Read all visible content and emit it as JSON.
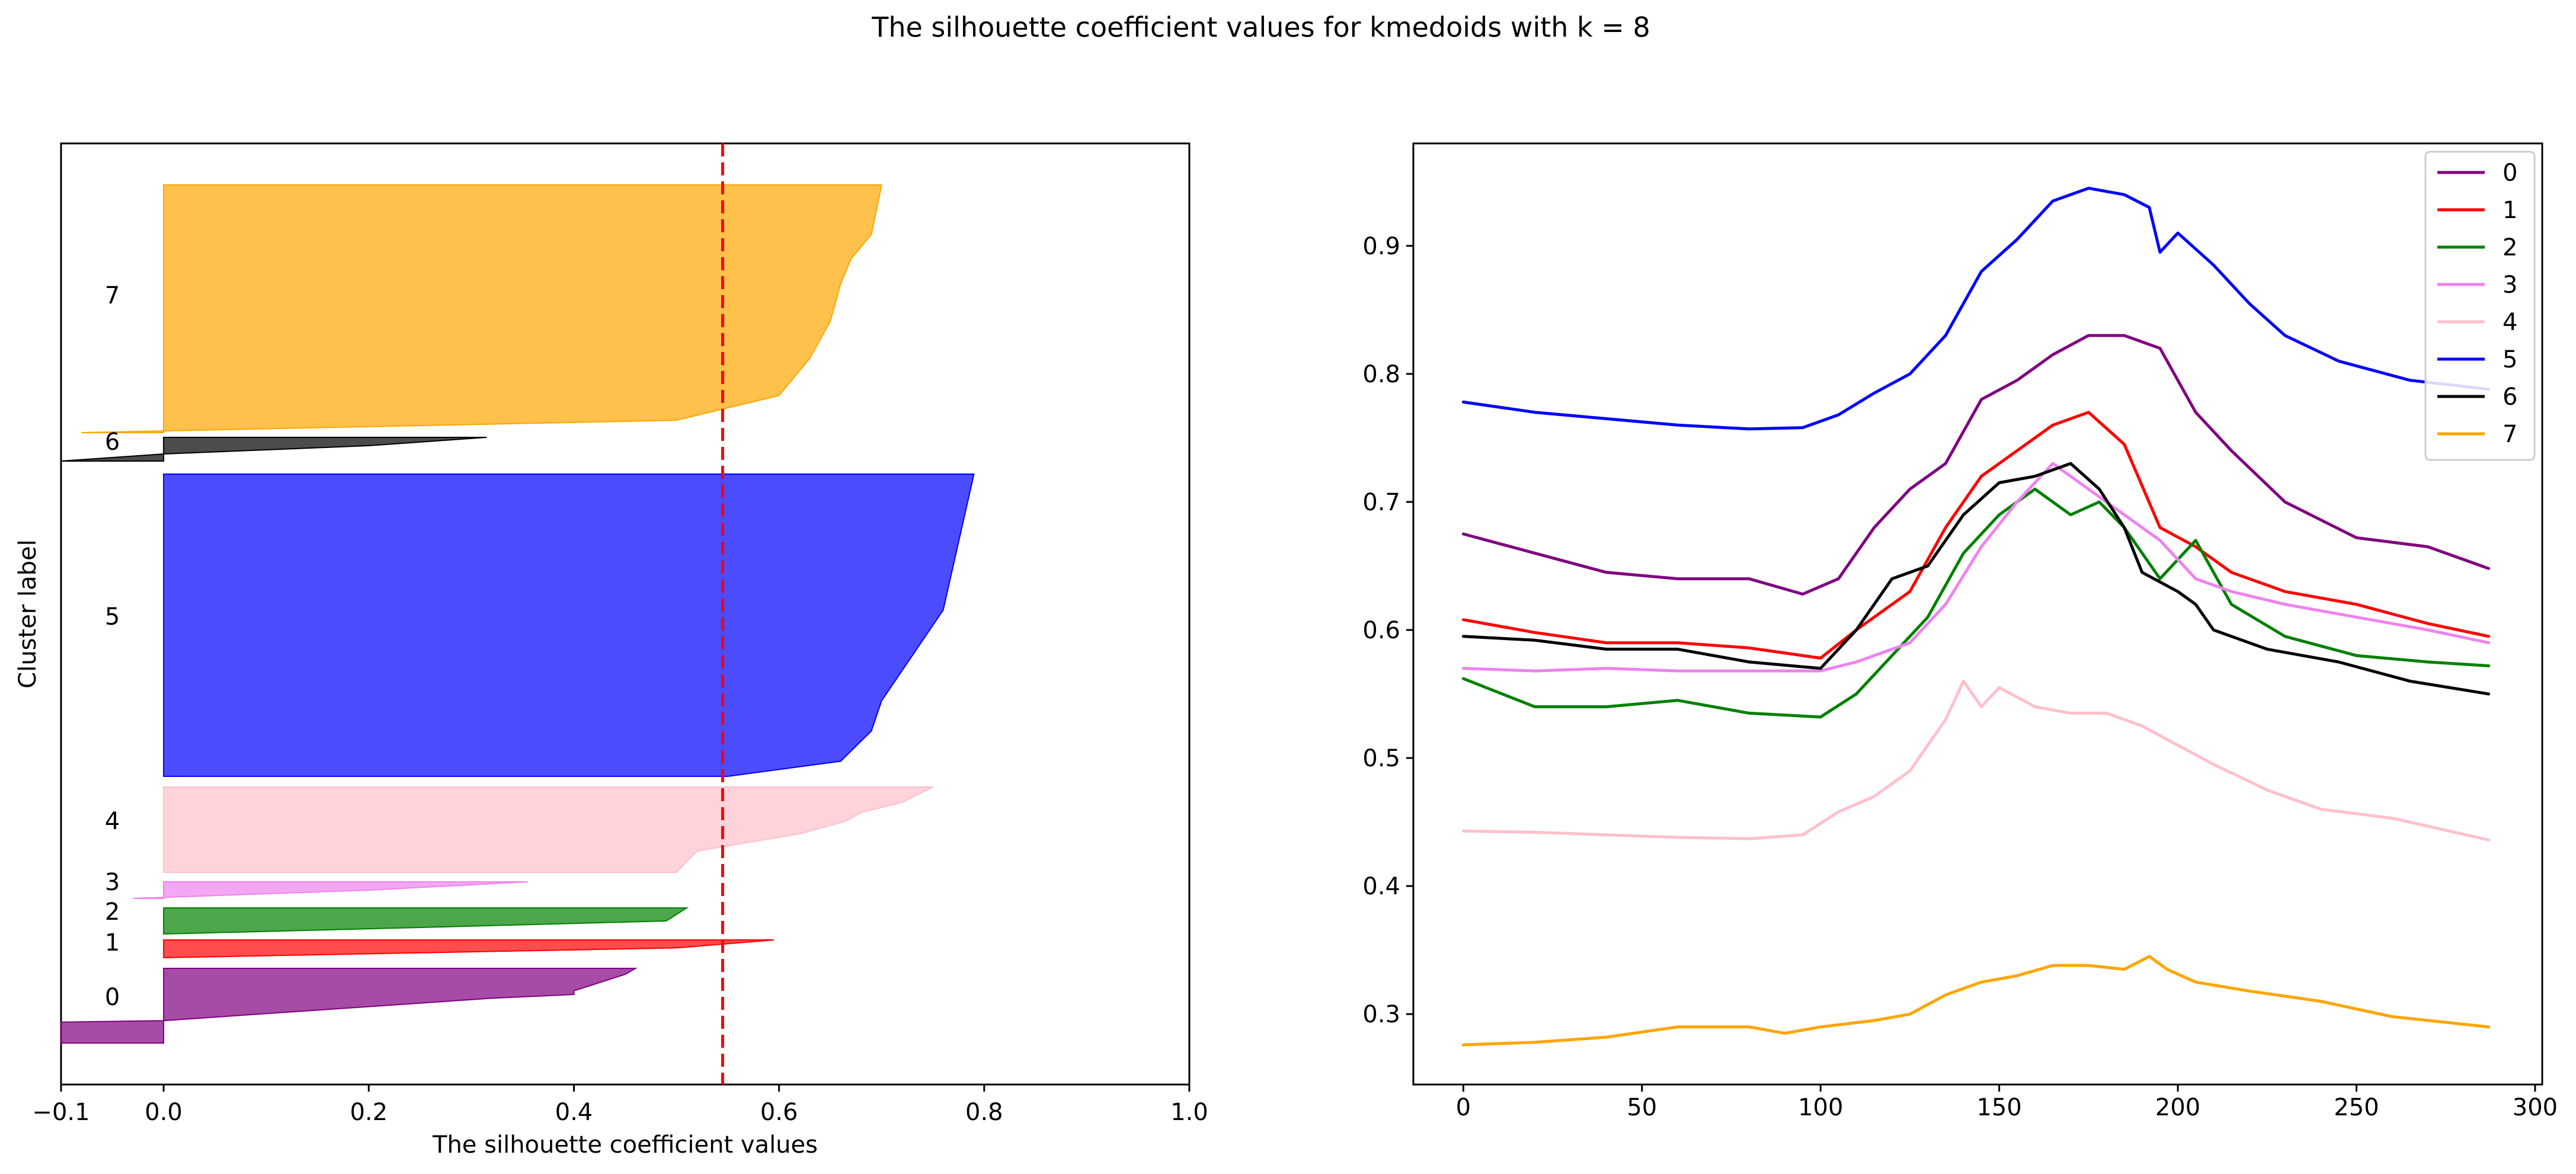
{
  "figure": {
    "suptitle": "The silhouette coefficient values for kmedoids with k = 8"
  },
  "chart_data": [
    {
      "type": "area",
      "title": "",
      "xlabel": "The silhouette coefficient values",
      "ylabel": "Cluster label",
      "xlim": [
        -0.1,
        1.0
      ],
      "xticks": [
        -0.1,
        0.0,
        0.2,
        0.4,
        0.6,
        0.8,
        1.0
      ],
      "xtick_labels": [
        "−0.1",
        "0.0",
        "0.2",
        "0.4",
        "0.6",
        "0.8",
        "1.0"
      ],
      "average_line": {
        "value": 0.545,
        "color": "#ff0000",
        "style": "dashed"
      },
      "clusters": [
        {
          "label": "0",
          "color": "#800080",
          "profile": [
            [
              0.0,
              0.46
            ],
            [
              0.08,
              0.45
            ],
            [
              0.3,
              0.4
            ],
            [
              0.35,
              0.4
            ],
            [
              0.4,
              0.32
            ],
            [
              0.7,
              0.0
            ],
            [
              0.72,
              -0.1
            ],
            [
              1.0,
              -0.1
            ]
          ]
        },
        {
          "label": "1",
          "color": "#ff0000",
          "profile": [
            [
              0.0,
              0.595
            ],
            [
              0.45,
              0.5
            ],
            [
              1.0,
              0.0
            ]
          ]
        },
        {
          "label": "2",
          "color": "#008000",
          "profile": [
            [
              0.0,
              0.51
            ],
            [
              0.5,
              0.49
            ],
            [
              0.7,
              0.3
            ],
            [
              1.0,
              0.0
            ]
          ]
        },
        {
          "label": "3",
          "color": "#ee82ee",
          "profile": [
            [
              0.0,
              0.355
            ],
            [
              0.5,
              0.2
            ],
            [
              1.0,
              -0.03
            ]
          ]
        },
        {
          "label": "4",
          "color": "#ffc0cb",
          "profile": [
            [
              0.0,
              0.75
            ],
            [
              0.18,
              0.72
            ],
            [
              0.3,
              0.68
            ],
            [
              0.4,
              0.665
            ],
            [
              0.55,
              0.62
            ],
            [
              0.75,
              0.52
            ],
            [
              1.0,
              0.5
            ]
          ]
        },
        {
          "label": "5",
          "color": "#0000ff",
          "profile": [
            [
              0.0,
              0.79
            ],
            [
              0.15,
              0.78
            ],
            [
              0.3,
              0.77
            ],
            [
              0.45,
              0.76
            ],
            [
              0.55,
              0.74
            ],
            [
              0.65,
              0.72
            ],
            [
              0.75,
              0.7
            ],
            [
              0.85,
              0.69
            ],
            [
              0.95,
              0.66
            ],
            [
              1.0,
              0.55
            ]
          ]
        },
        {
          "label": "6",
          "color": "#000000",
          "profile": [
            [
              0.0,
              0.315
            ],
            [
              0.35,
              0.2
            ],
            [
              0.7,
              0.0
            ],
            [
              1.0,
              -0.1
            ]
          ]
        },
        {
          "label": "7",
          "color": "#ffa500",
          "profile": [
            [
              0.0,
              0.7
            ],
            [
              0.1,
              0.695
            ],
            [
              0.2,
              0.69
            ],
            [
              0.3,
              0.67
            ],
            [
              0.4,
              0.66
            ],
            [
              0.55,
              0.65
            ],
            [
              0.7,
              0.63
            ],
            [
              0.85,
              0.6
            ],
            [
              0.95,
              0.5
            ],
            [
              1.0,
              -0.08
            ]
          ]
        }
      ]
    },
    {
      "type": "line",
      "title": "",
      "xlabel": "",
      "ylabel": "",
      "xlim": [
        -14,
        302
      ],
      "ylim": [
        0.245,
        0.98
      ],
      "xticks": [
        0,
        50,
        100,
        150,
        200,
        250,
        300
      ],
      "yticks": [
        0.3,
        0.4,
        0.5,
        0.6,
        0.7,
        0.8,
        0.9
      ],
      "legend_position": "top-right",
      "series": [
        {
          "name": "0",
          "color": "#800080",
          "points": [
            [
              0,
              0.675
            ],
            [
              20,
              0.66
            ],
            [
              40,
              0.645
            ],
            [
              60,
              0.64
            ],
            [
              80,
              0.64
            ],
            [
              95,
              0.628
            ],
            [
              105,
              0.64
            ],
            [
              115,
              0.68
            ],
            [
              125,
              0.71
            ],
            [
              135,
              0.73
            ],
            [
              145,
              0.78
            ],
            [
              155,
              0.795
            ],
            [
              165,
              0.815
            ],
            [
              175,
              0.83
            ],
            [
              185,
              0.83
            ],
            [
              195,
              0.82
            ],
            [
              205,
              0.77
            ],
            [
              215,
              0.74
            ],
            [
              230,
              0.7
            ],
            [
              250,
              0.672
            ],
            [
              270,
              0.665
            ],
            [
              287,
              0.648
            ]
          ]
        },
        {
          "name": "1",
          "color": "#ff0000",
          "points": [
            [
              0,
              0.608
            ],
            [
              20,
              0.598
            ],
            [
              40,
              0.59
            ],
            [
              60,
              0.59
            ],
            [
              80,
              0.586
            ],
            [
              100,
              0.578
            ],
            [
              110,
              0.6
            ],
            [
              125,
              0.63
            ],
            [
              135,
              0.68
            ],
            [
              145,
              0.72
            ],
            [
              155,
              0.74
            ],
            [
              165,
              0.76
            ],
            [
              175,
              0.77
            ],
            [
              185,
              0.745
            ],
            [
              195,
              0.68
            ],
            [
              205,
              0.665
            ],
            [
              215,
              0.645
            ],
            [
              230,
              0.63
            ],
            [
              250,
              0.62
            ],
            [
              270,
              0.605
            ],
            [
              287,
              0.595
            ]
          ]
        },
        {
          "name": "2",
          "color": "#008000",
          "points": [
            [
              0,
              0.562
            ],
            [
              20,
              0.54
            ],
            [
              40,
              0.54
            ],
            [
              60,
              0.545
            ],
            [
              80,
              0.535
            ],
            [
              100,
              0.532
            ],
            [
              110,
              0.55
            ],
            [
              120,
              0.58
            ],
            [
              130,
              0.61
            ],
            [
              140,
              0.66
            ],
            [
              150,
              0.69
            ],
            [
              160,
              0.71
            ],
            [
              170,
              0.69
            ],
            [
              178,
              0.7
            ],
            [
              185,
              0.68
            ],
            [
              195,
              0.64
            ],
            [
              205,
              0.67
            ],
            [
              215,
              0.62
            ],
            [
              230,
              0.595
            ],
            [
              250,
              0.58
            ],
            [
              270,
              0.575
            ],
            [
              287,
              0.572
            ]
          ]
        },
        {
          "name": "3",
          "color": "#ee82ee",
          "points": [
            [
              0,
              0.57
            ],
            [
              20,
              0.568
            ],
            [
              40,
              0.57
            ],
            [
              60,
              0.568
            ],
            [
              80,
              0.568
            ],
            [
              100,
              0.568
            ],
            [
              110,
              0.575
            ],
            [
              125,
              0.59
            ],
            [
              135,
              0.62
            ],
            [
              145,
              0.665
            ],
            [
              155,
              0.7
            ],
            [
              165,
              0.73
            ],
            [
              175,
              0.71
            ],
            [
              185,
              0.69
            ],
            [
              195,
              0.67
            ],
            [
              205,
              0.64
            ],
            [
              215,
              0.63
            ],
            [
              230,
              0.62
            ],
            [
              250,
              0.61
            ],
            [
              270,
              0.6
            ],
            [
              287,
              0.59
            ]
          ]
        },
        {
          "name": "4",
          "color": "#ffc0cb",
          "points": [
            [
              0,
              0.443
            ],
            [
              20,
              0.442
            ],
            [
              40,
              0.44
            ],
            [
              60,
              0.438
            ],
            [
              80,
              0.437
            ],
            [
              95,
              0.44
            ],
            [
              105,
              0.458
            ],
            [
              115,
              0.47
            ],
            [
              125,
              0.49
            ],
            [
              135,
              0.53
            ],
            [
              140,
              0.56
            ],
            [
              145,
              0.54
            ],
            [
              150,
              0.555
            ],
            [
              160,
              0.54
            ],
            [
              170,
              0.535
            ],
            [
              180,
              0.535
            ],
            [
              190,
              0.525
            ],
            [
              200,
              0.51
            ],
            [
              210,
              0.495
            ],
            [
              225,
              0.475
            ],
            [
              240,
              0.46
            ],
            [
              260,
              0.453
            ],
            [
              287,
              0.436
            ]
          ]
        },
        {
          "name": "5",
          "color": "#0000ff",
          "points": [
            [
              0,
              0.778
            ],
            [
              20,
              0.77
            ],
            [
              40,
              0.765
            ],
            [
              60,
              0.76
            ],
            [
              80,
              0.757
            ],
            [
              95,
              0.758
            ],
            [
              105,
              0.768
            ],
            [
              115,
              0.785
            ],
            [
              125,
              0.8
            ],
            [
              135,
              0.83
            ],
            [
              145,
              0.88
            ],
            [
              155,
              0.905
            ],
            [
              165,
              0.935
            ],
            [
              175,
              0.945
            ],
            [
              185,
              0.94
            ],
            [
              192,
              0.93
            ],
            [
              195,
              0.895
            ],
            [
              200,
              0.91
            ],
            [
              210,
              0.885
            ],
            [
              220,
              0.855
            ],
            [
              230,
              0.83
            ],
            [
              245,
              0.81
            ],
            [
              265,
              0.795
            ],
            [
              287,
              0.788
            ]
          ]
        },
        {
          "name": "6",
          "color": "#000000",
          "points": [
            [
              0,
              0.595
            ],
            [
              20,
              0.592
            ],
            [
              40,
              0.585
            ],
            [
              60,
              0.585
            ],
            [
              80,
              0.575
            ],
            [
              100,
              0.57
            ],
            [
              110,
              0.6
            ],
            [
              120,
              0.64
            ],
            [
              130,
              0.65
            ],
            [
              140,
              0.69
            ],
            [
              150,
              0.715
            ],
            [
              160,
              0.72
            ],
            [
              170,
              0.73
            ],
            [
              178,
              0.71
            ],
            [
              185,
              0.68
            ],
            [
              190,
              0.645
            ],
            [
              200,
              0.63
            ],
            [
              205,
              0.62
            ],
            [
              210,
              0.6
            ],
            [
              225,
              0.585
            ],
            [
              245,
              0.575
            ],
            [
              265,
              0.56
            ],
            [
              287,
              0.55
            ]
          ]
        },
        {
          "name": "7",
          "color": "#ffa500",
          "points": [
            [
              0,
              0.276
            ],
            [
              20,
              0.278
            ],
            [
              40,
              0.282
            ],
            [
              60,
              0.29
            ],
            [
              80,
              0.29
            ],
            [
              90,
              0.285
            ],
            [
              100,
              0.29
            ],
            [
              115,
              0.295
            ],
            [
              125,
              0.3
            ],
            [
              135,
              0.315
            ],
            [
              145,
              0.325
            ],
            [
              155,
              0.33
            ],
            [
              165,
              0.338
            ],
            [
              175,
              0.338
            ],
            [
              185,
              0.335
            ],
            [
              192,
              0.345
            ],
            [
              197,
              0.335
            ],
            [
              205,
              0.325
            ],
            [
              220,
              0.318
            ],
            [
              240,
              0.31
            ],
            [
              260,
              0.298
            ],
            [
              287,
              0.29
            ]
          ]
        }
      ]
    }
  ]
}
